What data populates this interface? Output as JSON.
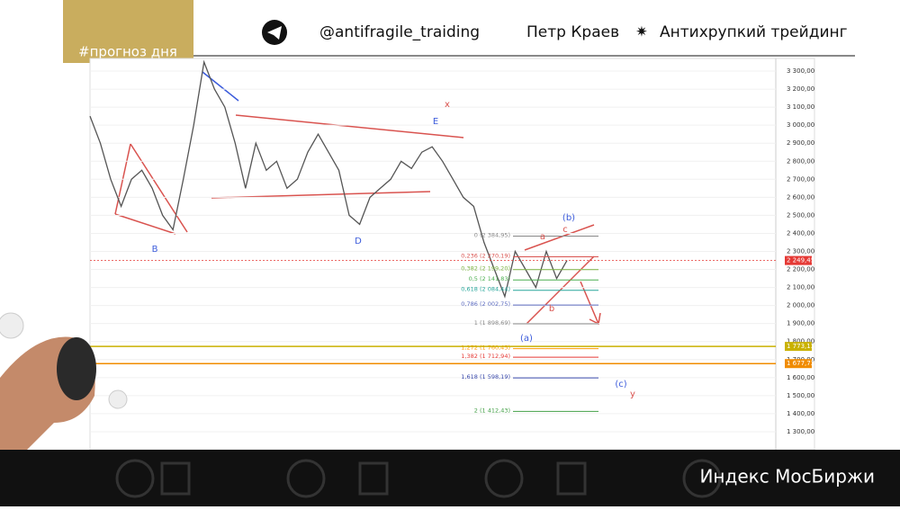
{
  "header": {
    "tag": "#прогноз дня",
    "channel": "@antifragile_traiding",
    "author": "Петр Краев",
    "brand": "Антихрупкий трейдинг"
  },
  "footer": {
    "title": "Индекс МосБиржи"
  },
  "chart_data": {
    "type": "line",
    "color": "#555555",
    "categories": [
      null,
      null,
      null,
      null,
      null,
      null,
      null,
      null,
      null,
      null,
      null,
      null,
      null,
      null,
      null,
      null,
      null,
      null,
      null,
      null,
      null,
      null,
      null,
      null,
      null,
      null,
      null,
      null,
      null,
      null,
      null,
      null,
      null,
      null,
      null,
      null,
      null,
      null,
      null,
      null,
      null,
      null,
      null,
      null,
      null,
      null,
      null
    ],
    "values": [
      3050,
      2900,
      2700,
      2550,
      2700,
      2750,
      2650,
      2500,
      2420,
      2700,
      3000,
      3350,
      3200,
      3100,
      2900,
      2650,
      2900,
      2750,
      2800,
      2650,
      2700,
      2850,
      2950,
      2850,
      2750,
      2500,
      2450,
      2600,
      2650,
      2700,
      2800,
      2760,
      2850,
      2880,
      2800,
      2700,
      2600,
      2550,
      2350,
      2200,
      2050,
      2300,
      2200,
      2100,
      2300,
      2150,
      2249.45
    ],
    "ylim": [
      1200,
      3370
    ],
    "yticks": [
      {
        "value": 1300,
        "label": "1 300,00"
      },
      {
        "value": 1400,
        "label": "1 400,00"
      },
      {
        "value": 1500,
        "label": "1 500,00"
      },
      {
        "value": 1600,
        "label": "1 600,00"
      },
      {
        "value": 1700,
        "label": "1 700,00"
      },
      {
        "value": 1800,
        "label": "1 800,00"
      },
      {
        "value": 1900,
        "label": "1 900,00"
      },
      {
        "value": 2000,
        "label": "2 000,00"
      },
      {
        "value": 2100,
        "label": "2 100,00"
      },
      {
        "value": 2200,
        "label": "2 200,00"
      },
      {
        "value": 2300,
        "label": "2 300,00"
      },
      {
        "value": 2400,
        "label": "2 400,00"
      },
      {
        "value": 2500,
        "label": "2 500,00"
      },
      {
        "value": 2600,
        "label": "2 600,00"
      },
      {
        "value": 2700,
        "label": "2 700,00"
      },
      {
        "value": 2800,
        "label": "2 800,00"
      },
      {
        "value": 2900,
        "label": "2 900,00"
      },
      {
        "value": 3000,
        "label": "3 000,00"
      },
      {
        "value": 3100,
        "label": "3 100,00"
      },
      {
        "value": 3200,
        "label": "3 200,00"
      },
      {
        "value": 3300,
        "label": "3 300,00"
      }
    ],
    "fib_levels": [
      {
        "value": 2384.95,
        "label": "0 (2 384,95)",
        "color": "#888888"
      },
      {
        "value": 2270.19,
        "label": "0,236 (2 270,19)",
        "color": "#d9534f"
      },
      {
        "value": 2199.2,
        "label": "0,382 (2 199,20)",
        "color": "#7cb342"
      },
      {
        "value": 2141.83,
        "label": "0,5 (2 141,83)",
        "color": "#4caf50"
      },
      {
        "value": 2084.44,
        "label": "0,618 (2 084,44)",
        "color": "#26a69a"
      },
      {
        "value": 2002.75,
        "label": "0,786 (2 002,75)",
        "color": "#5c6bc0"
      },
      {
        "value": 1898.69,
        "label": "1 (1 898,69)",
        "color": "#888888"
      },
      {
        "value": 1760.45,
        "label": "1,272 (1 760,45)",
        "color": "#ff9800"
      },
      {
        "value": 1712.94,
        "label": "1,382 (1 712,94)",
        "color": "#e53935"
      },
      {
        "value": 1598.19,
        "label": "1,618 (1 598,19)",
        "color": "#3949ab"
      },
      {
        "value": 1412.43,
        "label": "2 (1 412,43)",
        "color": "#43a047"
      }
    ],
    "markers": [
      {
        "value": 2249.45,
        "label": "2 249,45",
        "color": "#e53935"
      },
      {
        "value": 1773.13,
        "label": "1 773,13",
        "color": "#c9b100"
      },
      {
        "value": 1677.73,
        "label": "1 677,73",
        "color": "#f08c00"
      }
    ],
    "annotations": [
      "B",
      "D",
      "E",
      "(a)",
      "(b)",
      "(c)",
      "x",
      "y",
      "a",
      "b",
      "c"
    ]
  }
}
